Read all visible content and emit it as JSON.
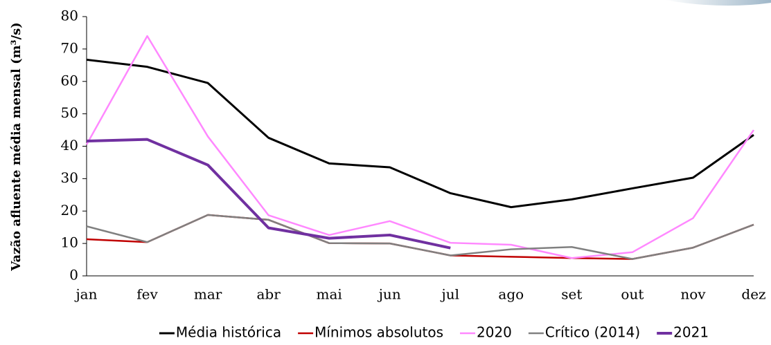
{
  "chart_data": {
    "type": "line",
    "y_label": "Vazão afluente média mensal (m³/s)",
    "categories": [
      "jan",
      "fev",
      "mar",
      "abr",
      "mai",
      "jun",
      "jul",
      "ago",
      "set",
      "out",
      "nov",
      "dez"
    ],
    "series": [
      {
        "name": "Média histórica",
        "color": "#000000",
        "width": 3,
        "values": [
          66.7,
          64.5,
          59.5,
          42.6,
          34.7,
          33.5,
          25.5,
          21.2,
          23.6,
          27.0,
          30.3,
          43.5
        ]
      },
      {
        "name": "Mínimos absolutos",
        "color": "#c00000",
        "width": 2.5,
        "values": [
          11.3,
          10.4,
          18.8,
          17.3,
          10.1,
          10.0,
          6.3,
          5.9,
          5.5,
          5.2,
          8.7,
          15.8
        ]
      },
      {
        "name": "2020",
        "color": "#ff88ff",
        "width": 2.5,
        "values": [
          40.5,
          74.0,
          43.0,
          18.7,
          12.6,
          16.9,
          10.2,
          9.6,
          5.5,
          7.3,
          17.8,
          45.0
        ]
      },
      {
        "name": "Crítico (2014)",
        "color": "#808080",
        "width": 2.5,
        "values": [
          15.3,
          10.4,
          18.8,
          17.3,
          10.1,
          10.0,
          6.3,
          8.2,
          8.9,
          5.2,
          8.7,
          15.8
        ]
      },
      {
        "name": "2021",
        "color": "#7030a0",
        "width": 4,
        "values": [
          41.6,
          42.1,
          34.2,
          14.8,
          11.6,
          12.6,
          8.6,
          null,
          null,
          null,
          null,
          null
        ]
      }
    ],
    "ylim": [
      0,
      80
    ],
    "yticks": [
      0,
      10,
      20,
      30,
      40,
      50,
      60,
      70,
      80
    ],
    "grid": false,
    "legend": "bottom"
  }
}
